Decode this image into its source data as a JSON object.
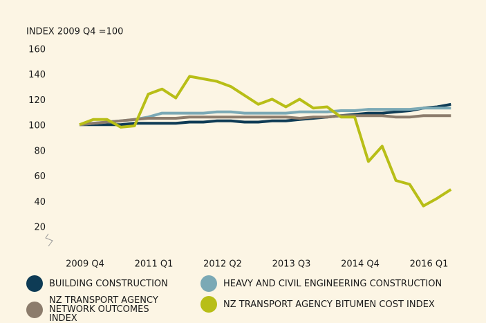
{
  "chart_data": {
    "type": "line",
    "y_label": "INDEX 2009 Q4 =100",
    "categories": [
      "2009 Q4",
      null,
      null,
      null,
      null,
      "2011 Q1",
      null,
      null,
      null,
      null,
      "2012 Q2",
      null,
      null,
      null,
      null,
      "2013 Q3",
      null,
      null,
      null,
      null,
      "2014 Q4",
      null,
      null,
      null,
      null,
      "2016 Q1",
      null,
      null
    ],
    "ylim": [
      0,
      170
    ],
    "yticks": [
      20,
      40,
      60,
      80,
      100,
      120,
      140,
      160
    ],
    "grid": false,
    "series": [
      {
        "name": "BUILDING CONSTRUCTION",
        "color": "#0e3b55",
        "values": [
          101,
          101,
          101,
          101,
          102,
          102,
          102,
          102,
          103,
          103,
          104,
          104,
          103,
          103,
          104,
          104,
          105,
          106,
          107,
          108,
          109,
          110,
          110,
          111,
          112,
          114,
          115,
          117
        ]
      },
      {
        "name": "HEAVY AND CIVIL ENGINEERING CONSTRUCTION",
        "color": "#7ba9b5",
        "values": [
          101,
          102,
          103,
          104,
          105,
          107,
          110,
          110,
          110,
          110,
          111,
          111,
          110,
          110,
          110,
          110,
          111,
          111,
          111,
          112,
          112,
          113,
          113,
          113,
          113,
          114,
          114,
          114
        ]
      },
      {
        "name": "NZ TRANSPORT AGENCY NETWORK OUTCOMES INDEX",
        "color": "#8c7c6c",
        "values": [
          101,
          102,
          103,
          104,
          105,
          106,
          106,
          106,
          107,
          107,
          107,
          107,
          107,
          107,
          107,
          107,
          106,
          107,
          107,
          108,
          108,
          108,
          108,
          107,
          107,
          108,
          108,
          108
        ]
      },
      {
        "name": "NZ TRANSPORT AGENCY BITUMEN COST INDEX",
        "color": "#b8be17",
        "values": [
          101,
          105,
          105,
          99,
          100,
          125,
          129,
          122,
          139,
          137,
          135,
          131,
          124,
          117,
          121,
          115,
          121,
          114,
          115,
          107,
          107,
          72,
          84,
          57,
          54,
          37,
          43,
          50
        ]
      }
    ]
  }
}
